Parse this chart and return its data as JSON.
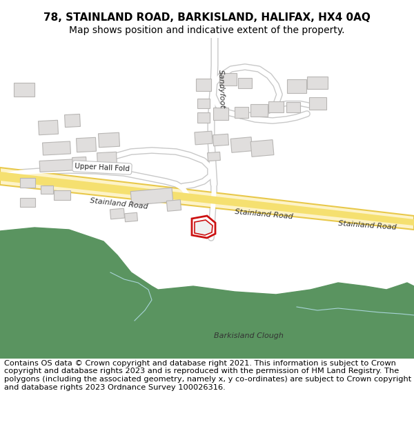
{
  "title_line1": "78, STAINLAND ROAD, BARKISLAND, HALIFAX, HX4 0AQ",
  "title_line2": "Map shows position and indicative extent of the property.",
  "footer_text": "Contains OS data © Crown copyright and database right 2021. This information is subject to Crown copyright and database rights 2023 and is reproduced with the permission of HM Land Registry. The polygons (including the associated geometry, namely x, y co-ordinates) are subject to Crown copyright and database rights 2023 Ordnance Survey 100026316.",
  "title_fontsize": 11,
  "subtitle_fontsize": 10,
  "footer_fontsize": 8.2,
  "map_bg": "#ffffff",
  "road_fill": "#fdf3c8",
  "road_edge": "#e8c84a",
  "road_fill2": "#f5e070",
  "bld_fill": "#e0dedd",
  "bld_edge": "#b8b6b4",
  "green_fill": "#5a9460",
  "hi_edge": "#cc1111",
  "road_text": "#333333",
  "map_text": "#222222",
  "thin_road_fill": "#ffffff",
  "thin_road_edge": "#c8c8c8",
  "figure_width": 6.0,
  "figure_height": 6.25
}
